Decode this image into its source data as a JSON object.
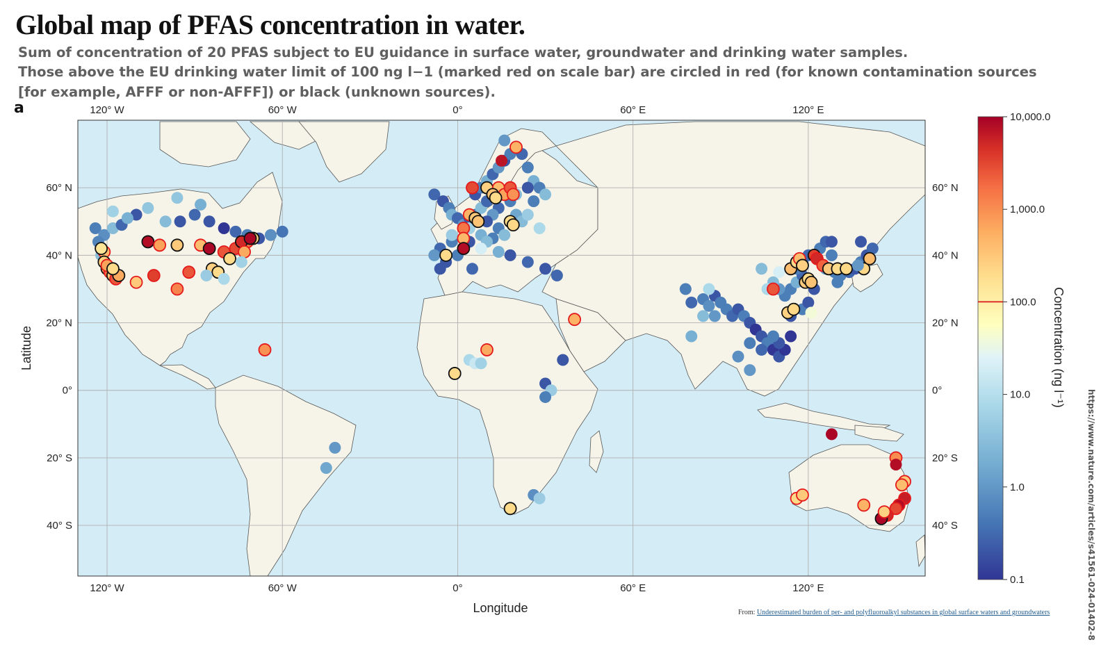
{
  "title": "Global map of PFAS concentration in water.",
  "subtitle_lines": [
    "Sum of concentration of 20 PFAS subject to EU guidance in surface water, groundwater and drinking water samples.",
    "Those above the EU drinking water limit of 100 ng l−1 (marked red on scale bar) are circled in red (for known contamination sources",
    "[for example, AFFF or non-AFFF]) or black (unknown sources)."
  ],
  "panel_label": "a",
  "map": {
    "x_axis_title": "Longitude",
    "y_axis_title": "Latitude",
    "x_ticks": [
      {
        "lon": -120,
        "label": "120° W"
      },
      {
        "lon": -60,
        "label": "60° W"
      },
      {
        "lon": 0,
        "label": "0°"
      },
      {
        "lon": 60,
        "label": "60° E"
      },
      {
        "lon": 120,
        "label": "120° E"
      }
    ],
    "y_ticks": [
      {
        "lat": 60,
        "label": "60° N"
      },
      {
        "lat": 40,
        "label": "40° N"
      },
      {
        "lat": 20,
        "label": "20° N"
      },
      {
        "lat": 0,
        "label": "0°"
      },
      {
        "lat": -20,
        "label": "20° S"
      },
      {
        "lat": -40,
        "label": "40° S"
      }
    ],
    "lon_range": [
      -130,
      160
    ],
    "lat_range": [
      -55,
      80
    ],
    "ocean_color": "#d4ecf6",
    "land_color": "#f6f4e8",
    "grid": true
  },
  "colorbar": {
    "title": "Concentration (ng l⁻¹)",
    "scale": "log",
    "range": [
      0.1,
      10000
    ],
    "tick_labels": [
      {
        "value": 10000,
        "label": "10,000.0"
      },
      {
        "value": 1000,
        "label": "1,000.0"
      },
      {
        "value": 100,
        "label": "100.0"
      },
      {
        "value": 10,
        "label": "10.0"
      },
      {
        "value": 1,
        "label": "1.0"
      },
      {
        "value": 0.1,
        "label": "0.1"
      }
    ],
    "limit_value": 100,
    "limit_color": "#d7191c"
  },
  "source_url": "https://www.nature.com/articles/s41561-024-01402-8",
  "credit_prefix": "From: ",
  "credit_link": "Underestimated burden of per- and polyfluoroalkyl substances in global surface waters and groundwaters",
  "chart_data": {
    "type": "scatter",
    "x_field": "longitude",
    "y_field": "latitude",
    "color_field": "concentration_ng_per_l",
    "points": [
      [
        -124,
        48,
        0.5,
        ""
      ],
      [
        -121,
        46,
        0.8,
        ""
      ],
      [
        -118,
        48,
        3,
        ""
      ],
      [
        -115,
        49,
        0.3,
        ""
      ],
      [
        -110,
        52,
        0.2,
        ""
      ],
      [
        -106,
        54,
        4,
        ""
      ],
      [
        -100,
        50,
        3,
        ""
      ],
      [
        -95,
        50,
        0.2,
        ""
      ],
      [
        -90,
        52,
        0.3,
        ""
      ],
      [
        -85,
        50,
        0.2,
        ""
      ],
      [
        -80,
        48,
        0.1,
        ""
      ],
      [
        -76,
        47,
        0.3,
        ""
      ],
      [
        -72,
        46,
        0.5,
        ""
      ],
      [
        -68,
        45,
        0.2,
        ""
      ],
      [
        -64,
        46,
        0.8,
        ""
      ],
      [
        -60,
        47,
        0.4,
        ""
      ],
      [
        -96,
        57,
        4,
        ""
      ],
      [
        -88,
        55,
        2,
        ""
      ],
      [
        -118,
        53,
        6,
        ""
      ],
      [
        -113,
        51,
        2,
        ""
      ],
      [
        -123,
        44,
        0.6,
        ""
      ],
      [
        -122,
        40,
        3,
        ""
      ],
      [
        -121,
        41,
        400,
        "red"
      ],
      [
        -120,
        36,
        500,
        "black"
      ],
      [
        -119,
        35,
        1800,
        "red"
      ],
      [
        -118,
        34,
        300,
        "black"
      ],
      [
        -117,
        33,
        2500,
        "red"
      ],
      [
        -116,
        34,
        600,
        "black"
      ],
      [
        -122,
        42,
        150,
        "black"
      ],
      [
        -121,
        38,
        250,
        "black"
      ],
      [
        -120,
        37,
        700,
        "red"
      ],
      [
        -118,
        36,
        200,
        "black"
      ],
      [
        -106,
        44,
        8000,
        "black"
      ],
      [
        -102,
        43,
        700,
        "red"
      ],
      [
        -96,
        43,
        300,
        "black"
      ],
      [
        -88,
        43,
        400,
        "red"
      ],
      [
        -85,
        42,
        9000,
        "black"
      ],
      [
        -80,
        41,
        2500,
        "red"
      ],
      [
        -76,
        42,
        3000,
        "red"
      ],
      [
        -72,
        44,
        1500,
        "red"
      ],
      [
        -70,
        45,
        250,
        "black"
      ],
      [
        -74,
        44,
        5000,
        "black"
      ],
      [
        -71,
        45,
        9000,
        "black"
      ],
      [
        -73,
        41,
        600,
        "red"
      ],
      [
        -78,
        39,
        200,
        "black"
      ],
      [
        -84,
        36,
        250,
        "black"
      ],
      [
        -82,
        35,
        200,
        "black"
      ],
      [
        -92,
        35,
        2500,
        "red"
      ],
      [
        -96,
        30,
        1200,
        "red"
      ],
      [
        -104,
        34,
        3500,
        "red"
      ],
      [
        -110,
        32,
        300,
        "red"
      ],
      [
        -86,
        34,
        5,
        ""
      ],
      [
        -80,
        33,
        8,
        ""
      ],
      [
        -74,
        38,
        6,
        ""
      ],
      [
        -66,
        12,
        900,
        "red"
      ],
      [
        -42,
        -17,
        1,
        ""
      ],
      [
        -45,
        -23,
        1.5,
        ""
      ],
      [
        -8,
        58,
        0.3,
        ""
      ],
      [
        -5,
        56,
        0.2,
        ""
      ],
      [
        -3,
        54,
        0.5,
        ""
      ],
      [
        -2,
        52,
        2,
        ""
      ],
      [
        0,
        51,
        0.3,
        ""
      ],
      [
        2,
        49,
        1,
        ""
      ],
      [
        4,
        51,
        0.2,
        ""
      ],
      [
        6,
        52,
        0.5,
        ""
      ],
      [
        8,
        54,
        3,
        ""
      ],
      [
        10,
        56,
        0.3,
        ""
      ],
      [
        6,
        58,
        0.2,
        ""
      ],
      [
        8,
        60,
        0.5,
        ""
      ],
      [
        10,
        62,
        2,
        ""
      ],
      [
        12,
        64,
        0.3,
        ""
      ],
      [
        14,
        66,
        1,
        ""
      ],
      [
        16,
        68,
        0.2,
        ""
      ],
      [
        18,
        70,
        0.5,
        ""
      ],
      [
        20,
        72,
        3,
        ""
      ],
      [
        16,
        74,
        1,
        ""
      ],
      [
        22,
        70,
        0.3,
        ""
      ],
      [
        24,
        66,
        0.5,
        ""
      ],
      [
        26,
        62,
        2,
        ""
      ],
      [
        28,
        60,
        0.5,
        ""
      ],
      [
        24,
        60,
        0.2,
        ""
      ],
      [
        20,
        58,
        3,
        ""
      ],
      [
        18,
        56,
        0.5,
        ""
      ],
      [
        14,
        54,
        0.3,
        ""
      ],
      [
        12,
        52,
        1,
        ""
      ],
      [
        10,
        50,
        0.2,
        ""
      ],
      [
        14,
        48,
        0.5,
        ""
      ],
      [
        16,
        46,
        3,
        ""
      ],
      [
        12,
        45,
        0.5,
        ""
      ],
      [
        8,
        46,
        2,
        ""
      ],
      [
        4,
        44,
        0.2,
        ""
      ],
      [
        -2,
        44,
        0.5,
        ""
      ],
      [
        -6,
        42,
        0.3,
        ""
      ],
      [
        -8,
        40,
        1,
        ""
      ],
      [
        -4,
        38,
        0.2,
        ""
      ],
      [
        0,
        40,
        0.5,
        ""
      ],
      [
        -6,
        36,
        0.2,
        ""
      ],
      [
        5,
        36,
        0.3,
        ""
      ],
      [
        14,
        41,
        2,
        ""
      ],
      [
        18,
        40,
        0.2,
        ""
      ],
      [
        24,
        38,
        0.3,
        ""
      ],
      [
        30,
        36,
        0.2,
        ""
      ],
      [
        34,
        34,
        0.3,
        ""
      ],
      [
        20,
        52,
        1.5,
        ""
      ],
      [
        22,
        50,
        3,
        ""
      ],
      [
        26,
        56,
        0.5,
        ""
      ],
      [
        30,
        58,
        3,
        ""
      ],
      [
        24,
        52,
        5,
        ""
      ],
      [
        28,
        48,
        8,
        ""
      ],
      [
        10,
        44,
        3,
        ""
      ],
      [
        8,
        42,
        20,
        ""
      ],
      [
        -2,
        46,
        5,
        ""
      ],
      [
        4,
        48,
        6,
        ""
      ],
      [
        5,
        60,
        3000,
        "red"
      ],
      [
        10,
        60,
        250,
        "black"
      ],
      [
        14,
        60,
        400,
        "red"
      ],
      [
        12,
        58,
        350,
        "black"
      ],
      [
        16,
        58,
        700,
        "red"
      ],
      [
        18,
        60,
        2500,
        "red"
      ],
      [
        19,
        58,
        900,
        "red"
      ],
      [
        13,
        57,
        200,
        "black"
      ],
      [
        15,
        68,
        7000,
        ""
      ],
      [
        20,
        72,
        500,
        "red"
      ],
      [
        4,
        52,
        500,
        "red"
      ],
      [
        6,
        51,
        300,
        "black"
      ],
      [
        7,
        50,
        350,
        "black"
      ],
      [
        2,
        48,
        1500,
        "red"
      ],
      [
        2,
        45,
        450,
        "red"
      ],
      [
        18,
        50,
        200,
        "black"
      ],
      [
        19,
        49,
        220,
        "black"
      ],
      [
        2,
        42,
        8000,
        "black"
      ],
      [
        -4,
        40,
        200,
        "black"
      ],
      [
        10,
        12,
        600,
        "red"
      ],
      [
        40,
        21,
        500,
        "red"
      ],
      [
        -1,
        5,
        200,
        "black"
      ],
      [
        4,
        9,
        8,
        ""
      ],
      [
        6,
        8,
        15,
        ""
      ],
      [
        8,
        8,
        6,
        ""
      ],
      [
        36,
        9,
        0.2,
        ""
      ],
      [
        30,
        2,
        0.2,
        ""
      ],
      [
        32,
        0,
        5,
        ""
      ],
      [
        30,
        -2,
        0.5,
        ""
      ],
      [
        26,
        -31,
        0.8,
        ""
      ],
      [
        28,
        -32,
        5,
        ""
      ],
      [
        18,
        -35,
        200,
        "black"
      ],
      [
        78,
        30,
        0.5,
        ""
      ],
      [
        80,
        26,
        0.3,
        ""
      ],
      [
        84,
        27,
        0.5,
        ""
      ],
      [
        86,
        25,
        0.8,
        ""
      ],
      [
        88,
        28,
        0.2,
        ""
      ],
      [
        90,
        26,
        0.5,
        ""
      ],
      [
        84,
        22,
        3,
        ""
      ],
      [
        88,
        22,
        1,
        ""
      ],
      [
        92,
        24,
        0.5,
        ""
      ],
      [
        94,
        22,
        0.3,
        ""
      ],
      [
        96,
        24,
        0.2,
        ""
      ],
      [
        98,
        22,
        0.5,
        ""
      ],
      [
        100,
        20,
        0.2,
        ""
      ],
      [
        102,
        18,
        0.1,
        ""
      ],
      [
        104,
        16,
        0.2,
        ""
      ],
      [
        106,
        14,
        0.5,
        ""
      ],
      [
        108,
        12,
        0.1,
        ""
      ],
      [
        110,
        10,
        0.2,
        ""
      ],
      [
        112,
        12,
        0.1,
        ""
      ],
      [
        110,
        14,
        0.2,
        ""
      ],
      [
        114,
        16,
        0.1,
        ""
      ],
      [
        108,
        16,
        0.5,
        ""
      ],
      [
        104,
        12,
        0.3,
        ""
      ],
      [
        100,
        14,
        0.5,
        ""
      ],
      [
        96,
        10,
        0.8,
        ""
      ],
      [
        100,
        6,
        1,
        ""
      ],
      [
        80,
        16,
        2,
        ""
      ],
      [
        86,
        30,
        8,
        ""
      ],
      [
        114,
        22,
        0.2,
        ""
      ],
      [
        115,
        24,
        0.1,
        ""
      ],
      [
        118,
        24,
        0.5,
        ""
      ],
      [
        120,
        26,
        0.2,
        ""
      ],
      [
        112,
        28,
        0.5,
        ""
      ],
      [
        110,
        30,
        1,
        ""
      ],
      [
        108,
        32,
        3,
        ""
      ],
      [
        114,
        30,
        0.5,
        ""
      ],
      [
        116,
        32,
        2,
        ""
      ],
      [
        118,
        34,
        0.3,
        ""
      ],
      [
        120,
        32,
        0.5,
        ""
      ],
      [
        122,
        30,
        0.2,
        ""
      ],
      [
        116,
        36,
        0.5,
        ""
      ],
      [
        118,
        38,
        1,
        ""
      ],
      [
        120,
        40,
        0.3,
        ""
      ],
      [
        122,
        40,
        0.2,
        ""
      ],
      [
        124,
        42,
        0.5,
        ""
      ],
      [
        126,
        44,
        0.3,
        ""
      ],
      [
        128,
        44,
        0.2,
        ""
      ],
      [
        128,
        40,
        0.5,
        ""
      ],
      [
        126,
        36,
        1,
        ""
      ],
      [
        129,
        35,
        0.5,
        ""
      ],
      [
        131,
        34,
        0.5,
        ""
      ],
      [
        134,
        35,
        0.3,
        ""
      ],
      [
        136,
        36,
        0.2,
        ""
      ],
      [
        138,
        38,
        0.5,
        ""
      ],
      [
        140,
        40,
        0.2,
        ""
      ],
      [
        142,
        42,
        0.3,
        ""
      ],
      [
        138,
        44,
        0.2,
        ""
      ],
      [
        130,
        32,
        0.5,
        ""
      ],
      [
        104,
        36,
        3,
        ""
      ],
      [
        106,
        30,
        8,
        ""
      ],
      [
        110,
        35,
        20,
        ""
      ],
      [
        113,
        23,
        250,
        "black"
      ],
      [
        115,
        24,
        220,
        "black"
      ],
      [
        108,
        30,
        2500,
        "red"
      ],
      [
        114,
        36,
        400,
        "black"
      ],
      [
        116,
        38,
        200,
        "black"
      ],
      [
        117,
        39,
        400,
        "red"
      ],
      [
        118,
        37,
        250,
        "black"
      ],
      [
        119,
        32,
        300,
        "black"
      ],
      [
        120,
        33,
        200,
        "black"
      ],
      [
        121,
        32,
        350,
        "black"
      ],
      [
        122,
        40,
        3500,
        "black"
      ],
      [
        123,
        39,
        5000,
        "red"
      ],
      [
        125,
        37,
        2000,
        "red"
      ],
      [
        127,
        36,
        300,
        "black"
      ],
      [
        130,
        36,
        200,
        "black"
      ],
      [
        133,
        36,
        220,
        "black"
      ],
      [
        139,
        36,
        220,
        "black"
      ],
      [
        141,
        39,
        400,
        "black"
      ],
      [
        121,
        23,
        40,
        ""
      ],
      [
        137,
        37,
        1,
        ""
      ],
      [
        128,
        -13,
        9000,
        ""
      ],
      [
        150,
        -20,
        1000,
        "red"
      ],
      [
        150,
        -22,
        8000,
        ""
      ],
      [
        153,
        -27,
        300,
        "red"
      ],
      [
        152,
        -28,
        400,
        "red"
      ],
      [
        153,
        -32,
        6000,
        "red"
      ],
      [
        151,
        -34,
        8000,
        "red"
      ],
      [
        150,
        -35,
        3000,
        "red"
      ],
      [
        147,
        -37,
        5000,
        "red"
      ],
      [
        145,
        -38,
        9000,
        "black"
      ],
      [
        146,
        -36,
        250,
        "red"
      ],
      [
        139,
        -34,
        500,
        "red"
      ],
      [
        116,
        -32,
        200,
        "red"
      ],
      [
        118,
        -31,
        300,
        "red"
      ]
    ]
  }
}
